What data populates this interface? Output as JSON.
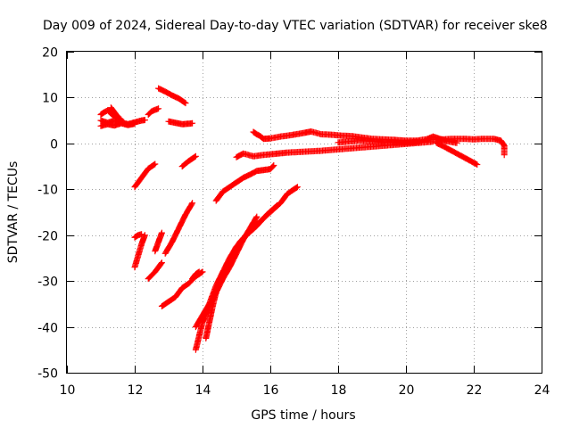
{
  "chart_data": {
    "type": "scatter",
    "title": "Day 009 of 2024, Sidereal Day-to-day VTEC variation (SDTVAR) for receiver ske8",
    "xlabel": "GPS time / hours",
    "ylabel": "SDTVAR / TECUs",
    "xlim": [
      10,
      24
    ],
    "ylim": [
      -50,
      20
    ],
    "xticks": [
      10,
      12,
      14,
      16,
      18,
      20,
      22,
      24
    ],
    "yticks": [
      -50,
      -40,
      -30,
      -20,
      -10,
      0,
      10,
      20
    ],
    "grid": true,
    "marker": "plus",
    "color": "#ff0000",
    "series": [
      {
        "points": [
          [
            11.0,
            5.0
          ],
          [
            11.2,
            4.5
          ],
          [
            11.4,
            5.0
          ],
          [
            11.6,
            4.6
          ],
          [
            11.8,
            4.2
          ],
          [
            12.0,
            4.6
          ],
          [
            12.2,
            5.0
          ],
          [
            12.3,
            5.1
          ]
        ]
      },
      {
        "points": [
          [
            11.0,
            3.8
          ],
          [
            11.2,
            4.2
          ],
          [
            11.4,
            3.9
          ],
          [
            11.6,
            4.4
          ],
          [
            11.8,
            4.0
          ],
          [
            12.0,
            4.3
          ]
        ]
      },
      {
        "points": [
          [
            11.0,
            6.3
          ],
          [
            11.1,
            6.8
          ],
          [
            11.2,
            7.2
          ],
          [
            11.3,
            6.5
          ],
          [
            11.4,
            6.0
          ],
          [
            11.5,
            5.6
          ]
        ]
      },
      {
        "points": [
          [
            11.3,
            7.8
          ],
          [
            11.4,
            6.8
          ],
          [
            11.5,
            5.8
          ],
          [
            11.6,
            5.2
          ]
        ]
      },
      {
        "points": [
          [
            12.4,
            6.3
          ],
          [
            12.5,
            7.0
          ],
          [
            12.6,
            7.3
          ],
          [
            12.7,
            7.6
          ]
        ]
      },
      {
        "points": [
          [
            12.7,
            12.0
          ],
          [
            12.9,
            11.3
          ],
          [
            13.1,
            10.5
          ],
          [
            13.3,
            9.8
          ],
          [
            13.5,
            8.8
          ]
        ]
      },
      {
        "points": [
          [
            13.0,
            4.8
          ],
          [
            13.2,
            4.5
          ],
          [
            13.4,
            4.2
          ],
          [
            13.6,
            4.3
          ],
          [
            13.7,
            4.4
          ]
        ]
      },
      {
        "points": [
          [
            12.0,
            -9.5
          ],
          [
            12.2,
            -7.5
          ],
          [
            12.4,
            -5.5
          ],
          [
            12.6,
            -4.5
          ]
        ]
      },
      {
        "points": [
          [
            13.4,
            -5.0
          ],
          [
            13.6,
            -3.8
          ],
          [
            13.8,
            -2.8
          ]
        ]
      },
      {
        "points": [
          [
            12.0,
            -27.0
          ],
          [
            12.1,
            -24.5
          ],
          [
            12.2,
            -22.0
          ],
          [
            12.3,
            -20.0
          ]
        ]
      },
      {
        "points": [
          [
            12.0,
            -20.5
          ],
          [
            12.1,
            -20.0
          ],
          [
            12.2,
            -19.8
          ]
        ]
      },
      {
        "points": [
          [
            12.4,
            -29.5
          ],
          [
            12.6,
            -28.0
          ],
          [
            12.8,
            -26.0
          ]
        ]
      },
      {
        "points": [
          [
            12.6,
            -23.5
          ],
          [
            12.7,
            -21.5
          ],
          [
            12.8,
            -19.5
          ]
        ]
      },
      {
        "points": [
          [
            12.8,
            -35.5
          ],
          [
            13.0,
            -34.5
          ],
          [
            13.2,
            -33.5
          ],
          [
            13.4,
            -31.5
          ],
          [
            13.6,
            -30.5
          ],
          [
            13.8,
            -29.0
          ],
          [
            14.0,
            -28.0
          ]
        ]
      },
      {
        "points": [
          [
            12.9,
            -24.0
          ],
          [
            13.1,
            -21.5
          ],
          [
            13.3,
            -18.5
          ],
          [
            13.5,
            -15.5
          ],
          [
            13.7,
            -13.0
          ]
        ]
      },
      {
        "points": [
          [
            13.7,
            -29.5
          ],
          [
            13.8,
            -28.5
          ],
          [
            13.9,
            -28.0
          ]
        ]
      },
      {
        "points": [
          [
            13.8,
            -45.0
          ],
          [
            13.9,
            -42.0
          ],
          [
            14.0,
            -39.0
          ],
          [
            14.2,
            -35.5
          ],
          [
            14.4,
            -32.5
          ],
          [
            14.6,
            -29.5
          ],
          [
            14.8,
            -27.0
          ],
          [
            15.0,
            -24.0
          ],
          [
            15.2,
            -21.0
          ],
          [
            15.4,
            -18.5
          ],
          [
            15.6,
            -16.0
          ]
        ]
      },
      {
        "points": [
          [
            13.8,
            -40.0
          ],
          [
            14.0,
            -37.5
          ],
          [
            14.2,
            -35.0
          ],
          [
            14.4,
            -31.0
          ],
          [
            14.6,
            -28.0
          ],
          [
            14.8,
            -25.0
          ],
          [
            15.0,
            -22.5
          ],
          [
            15.3,
            -20.0
          ],
          [
            15.6,
            -18.0
          ],
          [
            15.9,
            -15.5
          ],
          [
            16.2,
            -13.5
          ]
        ]
      },
      {
        "points": [
          [
            14.1,
            -42.5
          ],
          [
            14.2,
            -39.0
          ],
          [
            14.3,
            -35.5
          ],
          [
            14.4,
            -32.5
          ],
          [
            14.5,
            -30.0
          ],
          [
            14.7,
            -27.0
          ],
          [
            14.9,
            -24.0
          ],
          [
            15.1,
            -21.5
          ],
          [
            15.4,
            -19.0
          ],
          [
            15.7,
            -17.0
          ],
          [
            16.0,
            -15.0
          ],
          [
            16.3,
            -13.0
          ],
          [
            16.5,
            -11.0
          ],
          [
            16.8,
            -9.5
          ]
        ]
      },
      {
        "points": [
          [
            14.4,
            -12.5
          ],
          [
            14.6,
            -10.5
          ],
          [
            14.8,
            -9.5
          ],
          [
            15.0,
            -8.5
          ],
          [
            15.2,
            -7.5
          ],
          [
            15.4,
            -6.8
          ],
          [
            15.6,
            -6.0
          ],
          [
            15.8,
            -5.8
          ],
          [
            16.0,
            -5.6
          ],
          [
            16.1,
            -4.8
          ]
        ]
      },
      {
        "points": [
          [
            15.0,
            -3.0
          ],
          [
            15.2,
            -2.2
          ],
          [
            15.5,
            -2.8
          ],
          [
            15.8,
            -2.5
          ],
          [
            16.1,
            -2.3
          ],
          [
            16.5,
            -2.0
          ],
          [
            17.0,
            -1.8
          ],
          [
            17.5,
            -1.6
          ],
          [
            18.0,
            -1.3
          ],
          [
            18.5,
            -1.0
          ],
          [
            19.0,
            -0.7
          ],
          [
            19.5,
            -0.4
          ],
          [
            20.0,
            -0.1
          ],
          [
            20.5,
            0.2
          ],
          [
            20.8,
            0.4
          ]
        ]
      },
      {
        "points": [
          [
            15.5,
            2.5
          ],
          [
            15.6,
            2.0
          ],
          [
            15.7,
            1.6
          ],
          [
            15.8,
            1.0
          ],
          [
            16.0,
            1.1
          ],
          [
            16.3,
            1.5
          ],
          [
            16.6,
            1.8
          ],
          [
            17.0,
            2.3
          ],
          [
            17.2,
            2.6
          ],
          [
            17.5,
            2.0
          ],
          [
            17.8,
            1.9
          ],
          [
            18.1,
            1.7
          ],
          [
            18.4,
            1.6
          ],
          [
            18.7,
            1.3
          ],
          [
            19.0,
            1.0
          ],
          [
            19.3,
            0.9
          ],
          [
            19.6,
            0.8
          ],
          [
            20.0,
            0.6
          ],
          [
            20.3,
            0.6
          ],
          [
            20.6,
            0.9
          ],
          [
            20.8,
            1.5
          ],
          [
            21.0,
            1.0
          ],
          [
            21.2,
            0.5
          ],
          [
            21.5,
            0.1
          ]
        ]
      },
      {
        "points": [
          [
            18.0,
            0.2
          ],
          [
            18.3,
            0.4
          ],
          [
            18.6,
            0.6
          ],
          [
            18.9,
            0.5
          ],
          [
            19.2,
            0.3
          ],
          [
            19.5,
            0.2
          ],
          [
            19.8,
            0.1
          ],
          [
            20.1,
            0.2
          ],
          [
            20.4,
            0.4
          ]
        ]
      },
      {
        "points": [
          [
            20.8,
            0.8
          ],
          [
            21.1,
            0.9
          ],
          [
            21.4,
            1.0
          ],
          [
            21.7,
            1.0
          ],
          [
            22.0,
            0.9
          ],
          [
            22.3,
            1.0
          ],
          [
            22.6,
            1.0
          ],
          [
            22.8,
            0.6
          ],
          [
            22.9,
            -0.5
          ],
          [
            22.9,
            -2.5
          ]
        ]
      },
      {
        "points": [
          [
            20.9,
            0.1
          ],
          [
            21.1,
            -0.6
          ],
          [
            21.3,
            -1.4
          ],
          [
            21.5,
            -2.2
          ],
          [
            21.7,
            -3.0
          ],
          [
            21.9,
            -3.8
          ],
          [
            22.1,
            -4.6
          ]
        ]
      }
    ]
  }
}
